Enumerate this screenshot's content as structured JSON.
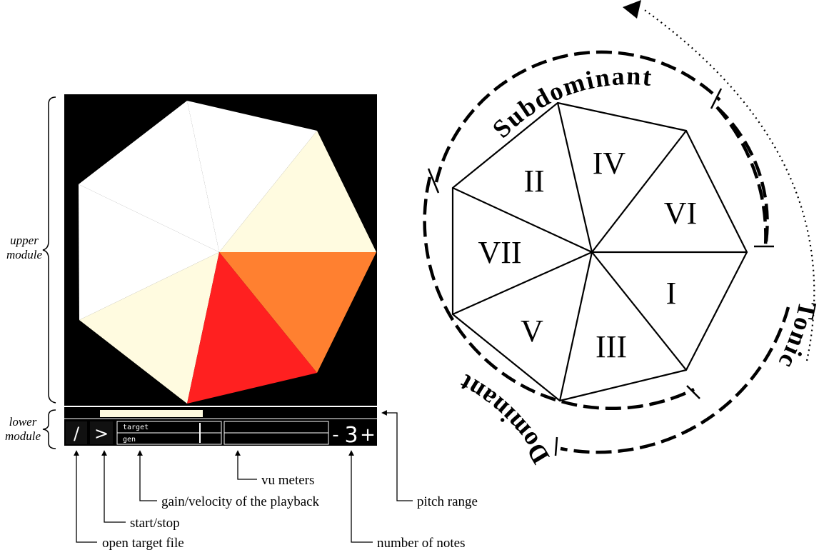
{
  "left_panel": {
    "upper_label": [
      "upper",
      "module"
    ],
    "lower_label": [
      "lower",
      "module"
    ],
    "buttons": {
      "open": "/",
      "play": ">",
      "notes_minus": "-",
      "notes_count": "3",
      "notes_plus": "+"
    },
    "meter_labels": {
      "top": "target",
      "bottom": "gen"
    },
    "colors": {
      "background": "#000000",
      "white": "#ffffff",
      "cream": "#fffbe0",
      "orange": "#ff8030",
      "red": "#ff2020"
    }
  },
  "callouts": {
    "open_target_file": "open target file",
    "start_stop": "start/stop",
    "gain": "gain/velocity of the playback",
    "vu_meters": "vu meters",
    "pitch_range": "pitch range",
    "number_of_notes": "number of notes"
  },
  "heptagon": {
    "segments": [
      "IV",
      "VI",
      "I",
      "III",
      "V",
      "VII",
      "II"
    ],
    "functions": {
      "subdominant": "Subdominant",
      "tonic": "Tonic",
      "dominant": "Dominant"
    }
  }
}
